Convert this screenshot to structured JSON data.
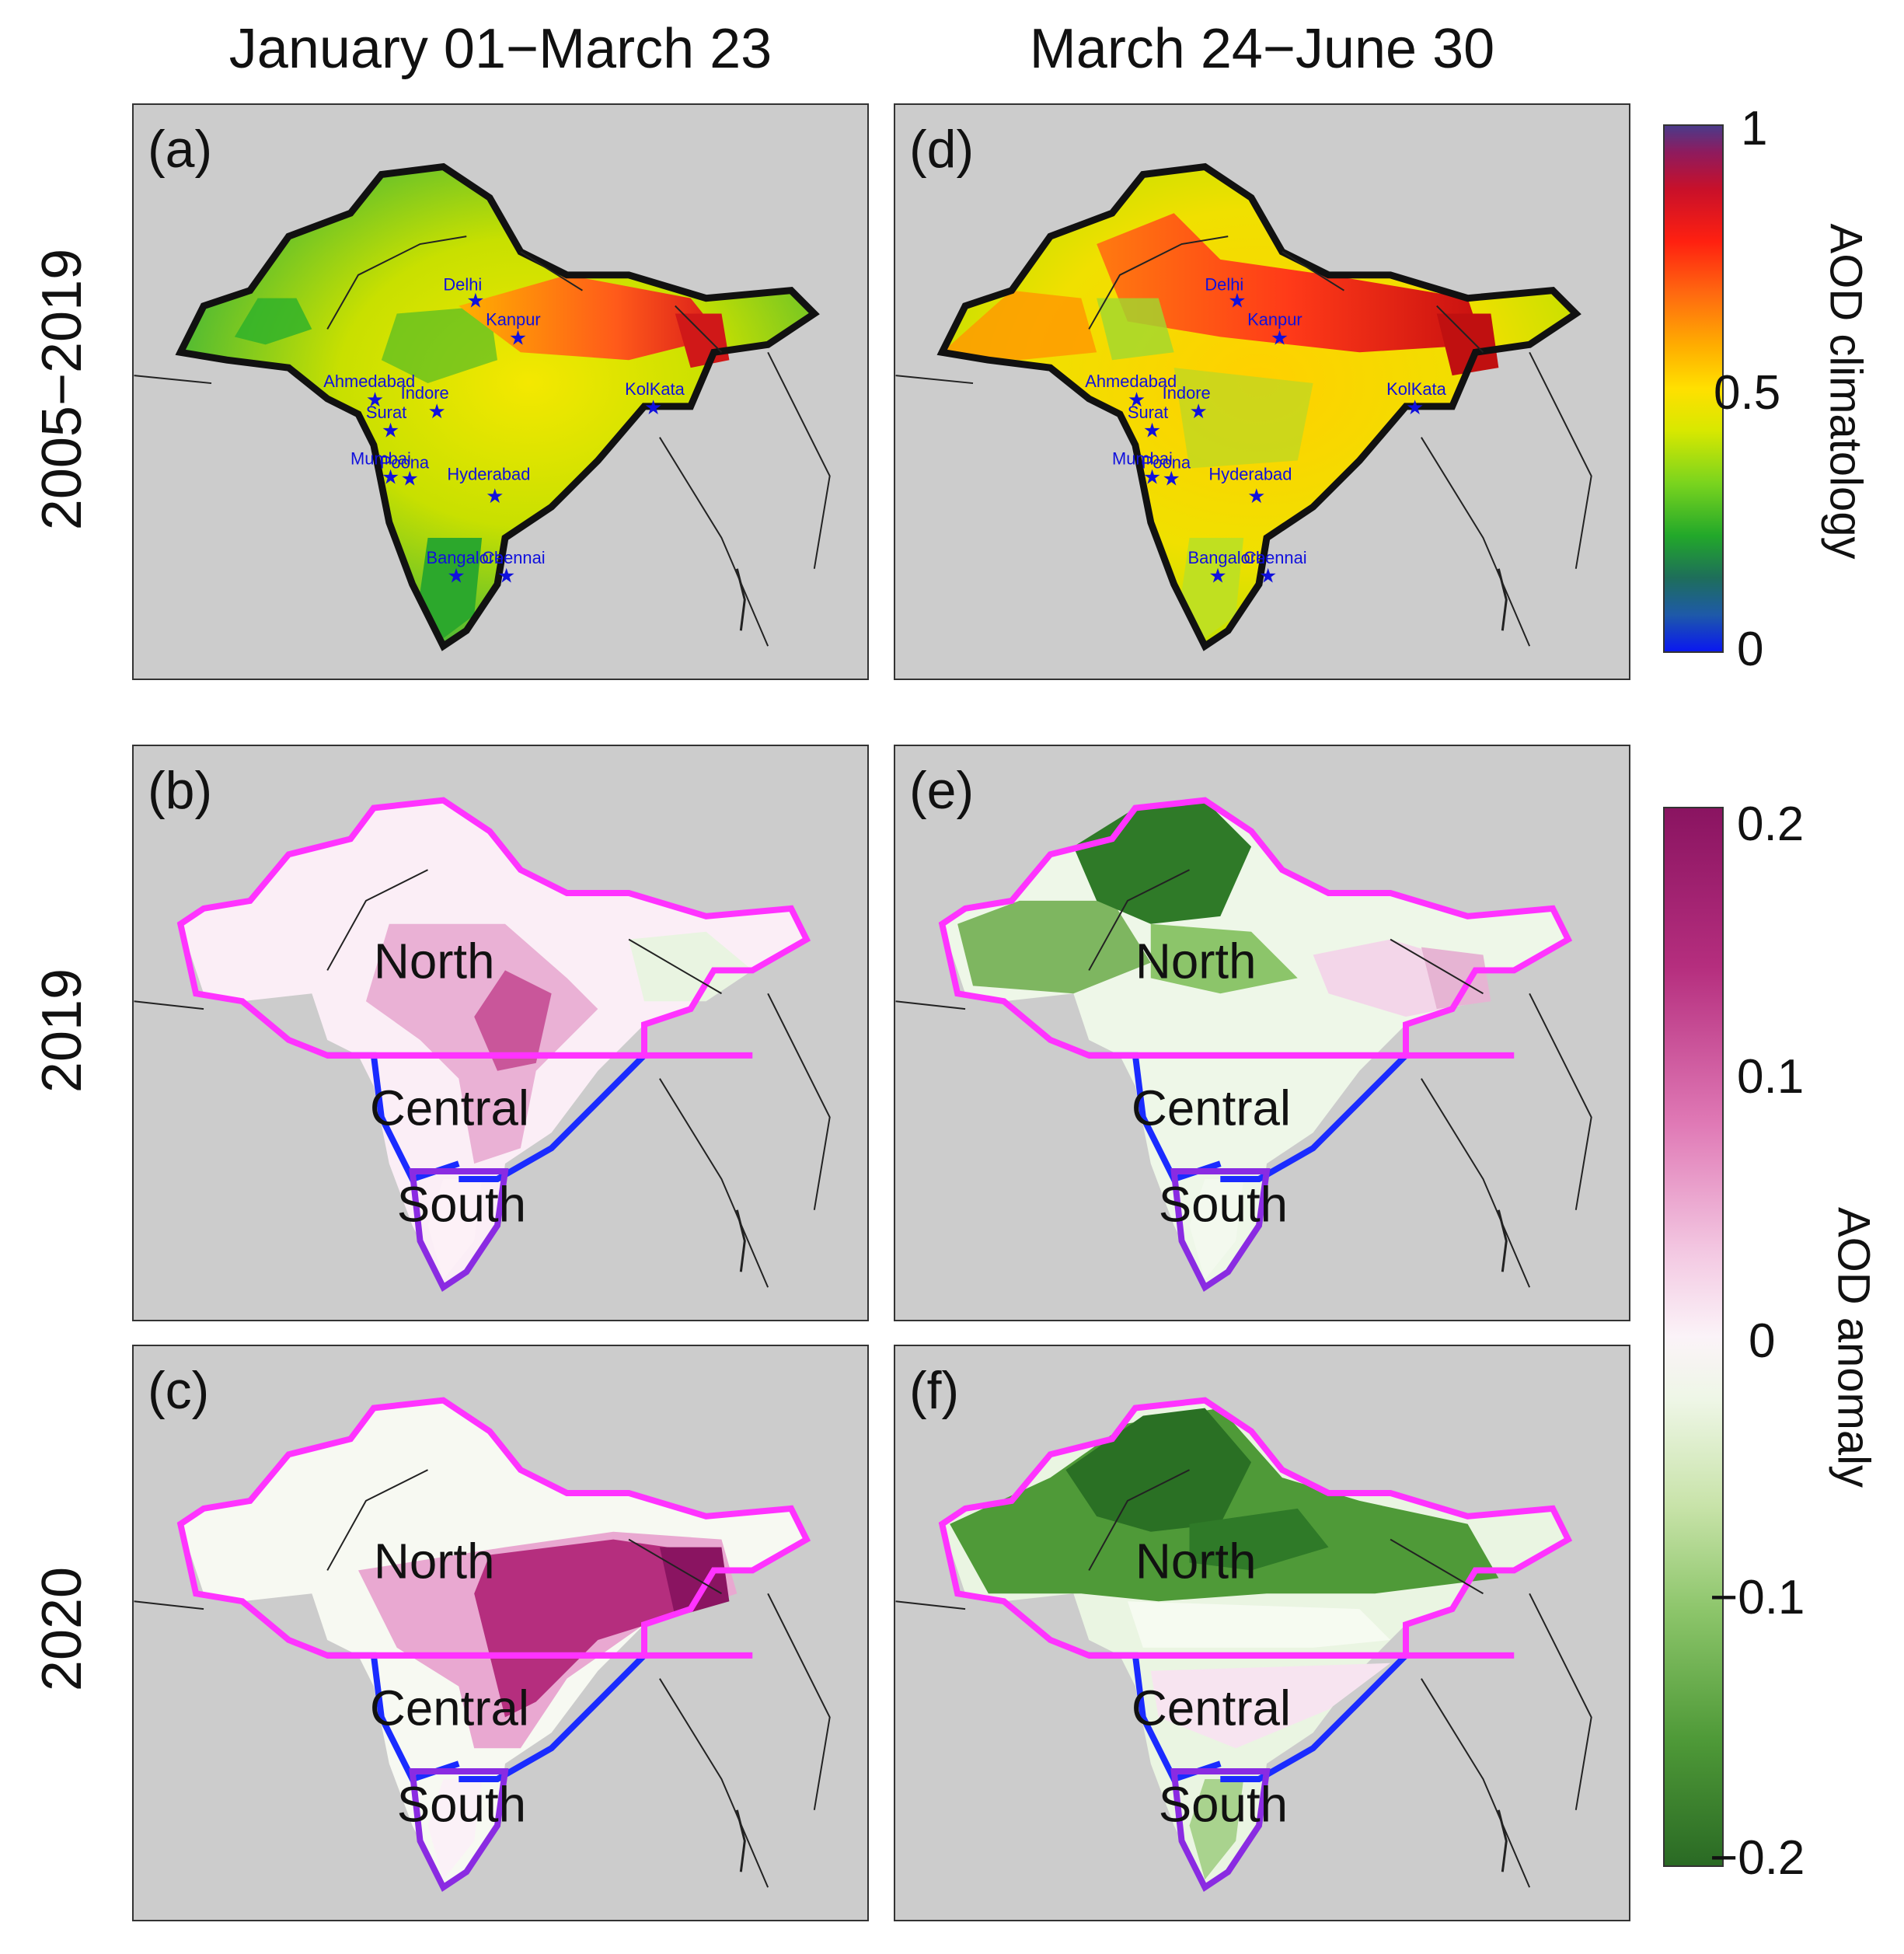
{
  "columns": {
    "left_title": "January 01−March 23",
    "right_title": "March 24−June 30"
  },
  "rows": {
    "row1": "2005−2019",
    "row2": "2019",
    "row3": "2020"
  },
  "panels": {
    "a": "(a)",
    "b": "(b)",
    "c": "(c)",
    "d": "(d)",
    "e": "(e)",
    "f": "(f)"
  },
  "cities": {
    "delhi": "Delhi",
    "kanpur": "Kanpur",
    "ahmedabad": "Ahmedabad",
    "indore": "Indore",
    "surat": "Surat",
    "kolkata": "KolKata",
    "mumbai": "Mumbai",
    "poona": "Poona",
    "hyderabad": "Hyderabad",
    "bangalore": "Bangalore",
    "chennai": "Chennai"
  },
  "regions": {
    "north": "North",
    "central": "Central",
    "south": "South"
  },
  "colorbar_climatology": {
    "label": "AOD climatology",
    "ticks": [
      "1",
      "0.5",
      "0"
    ]
  },
  "colorbar_anomaly": {
    "label": "AOD anomaly",
    "ticks": [
      "0.2",
      "0.1",
      "0",
      "−0.1",
      "−0.2"
    ]
  },
  "colors": {
    "background": "#cccccc",
    "north_boundary": "#ff33ff",
    "central_boundary": "#1a2bff",
    "south_boundary": "#8a2be2",
    "city_marker": "#1010dd"
  }
}
